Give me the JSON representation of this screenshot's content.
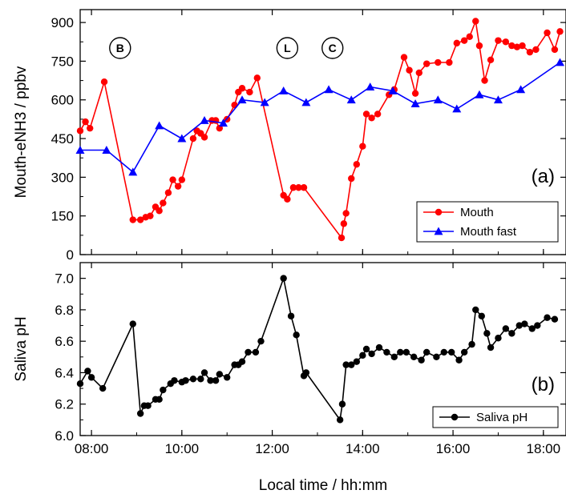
{
  "chart_data": [
    {
      "type": "line",
      "panel_label": "(a)",
      "ylabel": "Mouth-eNH3 / ppbv",
      "xlabel": "",
      "xlim": [
        "07:45",
        "18:30"
      ],
      "ylim": [
        0,
        950
      ],
      "xticks": [
        "08:00",
        "10:00",
        "12:00",
        "14:00",
        "16:00",
        "18:00"
      ],
      "yticks": [
        0,
        150,
        300,
        450,
        600,
        750,
        900
      ],
      "legend_position": "bottom-right",
      "annotations": [
        {
          "label": "B",
          "x": "08:38"
        },
        {
          "label": "L",
          "x": "12:20"
        },
        {
          "label": "C",
          "x": "13:20"
        }
      ],
      "series": [
        {
          "name": "Mouth",
          "color": "#ff0000",
          "marker": "circle",
          "points": [
            [
              "07:45",
              480
            ],
            [
              "07:52",
              515
            ],
            [
              "07:58",
              490
            ],
            [
              "08:17",
              670
            ],
            [
              "08:55",
              135
            ],
            [
              "09:05",
              135
            ],
            [
              "09:12",
              145
            ],
            [
              "09:18",
              150
            ],
            [
              "09:25",
              185
            ],
            [
              "09:30",
              170
            ],
            [
              "09:35",
              200
            ],
            [
              "09:42",
              240
            ],
            [
              "09:48",
              290
            ],
            [
              "09:55",
              265
            ],
            [
              "10:00",
              290
            ],
            [
              "10:15",
              450
            ],
            [
              "10:20",
              480
            ],
            [
              "10:25",
              470
            ],
            [
              "10:30",
              455
            ],
            [
              "10:40",
              520
            ],
            [
              "10:45",
              520
            ],
            [
              "10:50",
              490
            ],
            [
              "11:00",
              525
            ],
            [
              "11:10",
              580
            ],
            [
              "11:15",
              630
            ],
            [
              "11:20",
              645
            ],
            [
              "11:30",
              630
            ],
            [
              "11:40",
              685
            ],
            [
              "12:15",
              230
            ],
            [
              "12:20",
              215
            ],
            [
              "12:28",
              260
            ],
            [
              "12:35",
              260
            ],
            [
              "12:42",
              260
            ],
            [
              "13:32",
              65
            ],
            [
              "13:35",
              120
            ],
            [
              "13:38",
              160
            ],
            [
              "13:45",
              295
            ],
            [
              "13:52",
              350
            ],
            [
              "14:00",
              420
            ],
            [
              "14:05",
              545
            ],
            [
              "14:12",
              530
            ],
            [
              "14:20",
              545
            ],
            [
              "14:35",
              620
            ],
            [
              "14:42",
              640
            ],
            [
              "14:55",
              765
            ],
            [
              "15:02",
              715
            ],
            [
              "15:10",
              625
            ],
            [
              "15:15",
              705
            ],
            [
              "15:25",
              740
            ],
            [
              "15:40",
              745
            ],
            [
              "15:55",
              745
            ],
            [
              "16:05",
              820
            ],
            [
              "16:15",
              830
            ],
            [
              "16:22",
              845
            ],
            [
              "16:30",
              905
            ],
            [
              "16:35",
              810
            ],
            [
              "16:42",
              675
            ],
            [
              "16:50",
              755
            ],
            [
              "17:00",
              830
            ],
            [
              "17:10",
              825
            ],
            [
              "17:18",
              810
            ],
            [
              "17:25",
              805
            ],
            [
              "17:32",
              810
            ],
            [
              "17:42",
              785
            ],
            [
              "17:50",
              795
            ],
            [
              "18:05",
              860
            ],
            [
              "18:15",
              795
            ],
            [
              "18:22",
              865
            ]
          ]
        },
        {
          "name": "Mouth fast",
          "color": "#0000ff",
          "marker": "triangle",
          "points": [
            [
              "07:45",
              405
            ],
            [
              "08:20",
              405
            ],
            [
              "08:55",
              320
            ],
            [
              "09:30",
              500
            ],
            [
              "10:00",
              450
            ],
            [
              "10:30",
              520
            ],
            [
              "10:55",
              510
            ],
            [
              "11:20",
              600
            ],
            [
              "11:50",
              590
            ],
            [
              "12:15",
              635
            ],
            [
              "12:45",
              590
            ],
            [
              "13:15",
              640
            ],
            [
              "13:45",
              600
            ],
            [
              "14:10",
              650
            ],
            [
              "14:40",
              635
            ],
            [
              "15:10",
              585
            ],
            [
              "15:40",
              600
            ],
            [
              "16:05",
              565
            ],
            [
              "16:35",
              620
            ],
            [
              "17:00",
              600
            ],
            [
              "17:30",
              640
            ],
            [
              "18:22",
              745
            ]
          ]
        }
      ]
    },
    {
      "type": "line",
      "panel_label": "(b)",
      "ylabel": "Saliva pH",
      "xlabel": "Local time / hh:mm",
      "xlim": [
        "07:45",
        "18:30"
      ],
      "ylim": [
        6.0,
        7.1
      ],
      "xticks": [
        "08:00",
        "10:00",
        "12:00",
        "14:00",
        "16:00",
        "18:00"
      ],
      "yticks": [
        "6.0",
        "6.2",
        "6.4",
        "6.6",
        "6.8",
        "7.0"
      ],
      "legend_position": "bottom-right",
      "series": [
        {
          "name": "Saliva pH",
          "color": "#000000",
          "marker": "circle",
          "points": [
            [
              "07:45",
              6.33
            ],
            [
              "07:55",
              6.41
            ],
            [
              "08:00",
              6.37
            ],
            [
              "08:15",
              6.3
            ],
            [
              "08:55",
              6.71
            ],
            [
              "09:05",
              6.14
            ],
            [
              "09:10",
              6.19
            ],
            [
              "09:15",
              6.19
            ],
            [
              "09:25",
              6.23
            ],
            [
              "09:30",
              6.23
            ],
            [
              "09:35",
              6.29
            ],
            [
              "09:45",
              6.33
            ],
            [
              "09:50",
              6.35
            ],
            [
              "10:00",
              6.34
            ],
            [
              "10:05",
              6.35
            ],
            [
              "10:15",
              6.36
            ],
            [
              "10:25",
              6.36
            ],
            [
              "10:30",
              6.4
            ],
            [
              "10:38",
              6.35
            ],
            [
              "10:45",
              6.35
            ],
            [
              "10:50",
              6.39
            ],
            [
              "11:00",
              6.37
            ],
            [
              "11:10",
              6.45
            ],
            [
              "11:15",
              6.45
            ],
            [
              "11:20",
              6.47
            ],
            [
              "11:28",
              6.53
            ],
            [
              "11:38",
              6.53
            ],
            [
              "11:45",
              6.6
            ],
            [
              "12:15",
              7.0
            ],
            [
              "12:25",
              6.76
            ],
            [
              "12:32",
              6.64
            ],
            [
              "12:42",
              6.38
            ],
            [
              "12:45",
              6.4
            ],
            [
              "13:30",
              6.1
            ],
            [
              "13:33",
              6.2
            ],
            [
              "13:38",
              6.45
            ],
            [
              "13:45",
              6.45
            ],
            [
              "13:52",
              6.47
            ],
            [
              "14:00",
              6.51
            ],
            [
              "14:05",
              6.55
            ],
            [
              "14:12",
              6.52
            ],
            [
              "14:22",
              6.56
            ],
            [
              "14:32",
              6.53
            ],
            [
              "14:42",
              6.5
            ],
            [
              "14:50",
              6.53
            ],
            [
              "14:58",
              6.53
            ],
            [
              "15:08",
              6.5
            ],
            [
              "15:18",
              6.48
            ],
            [
              "15:25",
              6.53
            ],
            [
              "15:38",
              6.5
            ],
            [
              "15:48",
              6.53
            ],
            [
              "15:58",
              6.53
            ],
            [
              "16:08",
              6.48
            ],
            [
              "16:15",
              6.53
            ],
            [
              "16:25",
              6.58
            ],
            [
              "16:30",
              6.8
            ],
            [
              "16:38",
              6.76
            ],
            [
              "16:45",
              6.65
            ],
            [
              "16:50",
              6.56
            ],
            [
              "17:00",
              6.62
            ],
            [
              "17:10",
              6.68
            ],
            [
              "17:18",
              6.65
            ],
            [
              "17:28",
              6.7
            ],
            [
              "17:35",
              6.71
            ],
            [
              "17:45",
              6.68
            ],
            [
              "17:52",
              6.7
            ],
            [
              "18:05",
              6.75
            ],
            [
              "18:15",
              6.74
            ]
          ]
        }
      ]
    }
  ]
}
